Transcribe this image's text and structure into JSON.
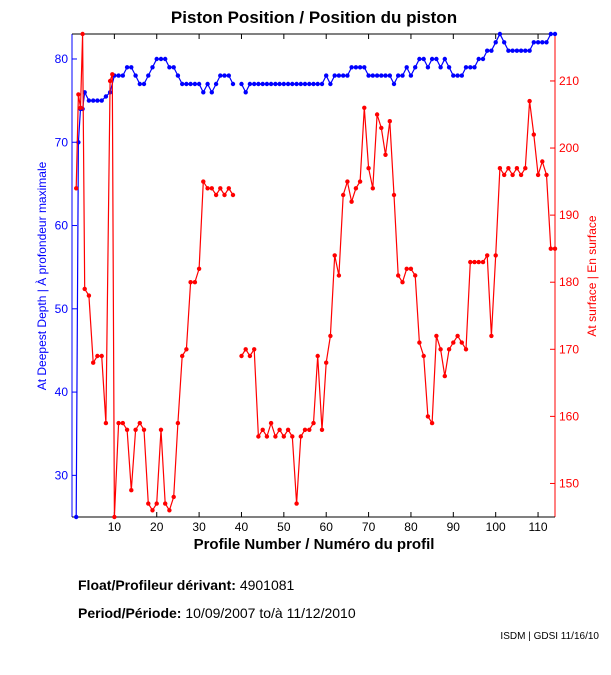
{
  "chart_data": {
    "type": "line",
    "title": "Piston Position / Position du piston",
    "xlabel": "Profile Number / Numéro du profil",
    "ylabel_left": "At Deepest Depth | À profondeur maximale",
    "ylabel_right": "At surface | En surface",
    "xlim": [
      0,
      114
    ],
    "ylim_left": [
      25,
      83
    ],
    "ylim_right": [
      145,
      217
    ],
    "x_ticks": [
      10,
      20,
      30,
      40,
      50,
      60,
      70,
      80,
      90,
      100,
      110
    ],
    "y_ticks_left": [
      30,
      40,
      50,
      60,
      70,
      80
    ],
    "y_ticks_right": [
      150,
      160,
      170,
      180,
      190,
      200,
      210
    ],
    "grid": false,
    "series": [
      {
        "axis": "left",
        "color": "#0000ff",
        "points": [
          [
            1,
            25
          ],
          [
            1.5,
            70
          ],
          [
            2,
            74
          ],
          [
            2.5,
            74
          ],
          [
            3,
            76
          ],
          [
            4,
            75
          ],
          [
            5,
            75
          ],
          [
            6,
            75
          ],
          [
            7,
            75
          ],
          [
            8,
            75.5
          ],
          [
            9,
            76
          ],
          [
            10,
            78
          ],
          [
            11,
            78
          ],
          [
            12,
            78
          ],
          [
            13,
            79
          ],
          [
            14,
            79
          ],
          [
            15,
            78
          ],
          [
            16,
            77
          ],
          [
            17,
            77
          ],
          [
            18,
            78
          ],
          [
            19,
            79
          ],
          [
            20,
            80
          ],
          [
            21,
            80
          ],
          [
            22,
            80
          ],
          [
            23,
            79
          ],
          [
            24,
            79
          ],
          [
            25,
            78
          ],
          [
            26,
            77
          ],
          [
            27,
            77
          ],
          [
            28,
            77
          ],
          [
            29,
            77
          ],
          [
            30,
            77
          ],
          [
            31,
            76
          ],
          [
            32,
            77
          ],
          [
            33,
            76
          ],
          [
            34,
            77
          ],
          [
            35,
            78
          ],
          [
            36,
            78
          ],
          [
            37,
            78
          ],
          [
            38,
            77
          ],
          null,
          [
            40,
            77
          ],
          [
            41,
            76
          ],
          [
            42,
            77
          ],
          [
            43,
            77
          ],
          [
            44,
            77
          ],
          [
            45,
            77
          ],
          [
            46,
            77
          ],
          [
            47,
            77
          ],
          [
            48,
            77
          ],
          [
            49,
            77
          ],
          [
            50,
            77
          ],
          [
            51,
            77
          ],
          [
            52,
            77
          ],
          [
            53,
            77
          ],
          [
            54,
            77
          ],
          [
            55,
            77
          ],
          [
            56,
            77
          ],
          [
            57,
            77
          ],
          [
            58,
            77
          ],
          [
            59,
            77
          ],
          [
            60,
            78
          ],
          [
            61,
            77
          ],
          [
            62,
            78
          ],
          [
            63,
            78
          ],
          [
            64,
            78
          ],
          [
            65,
            78
          ],
          [
            66,
            79
          ],
          [
            67,
            79
          ],
          [
            68,
            79
          ],
          [
            69,
            79
          ],
          [
            70,
            78
          ],
          [
            71,
            78
          ],
          [
            72,
            78
          ],
          [
            73,
            78
          ],
          [
            74,
            78
          ],
          [
            75,
            78
          ],
          [
            76,
            77
          ],
          [
            77,
            78
          ],
          [
            78,
            78
          ],
          [
            79,
            79
          ],
          [
            80,
            78
          ],
          [
            81,
            79
          ],
          [
            82,
            80
          ],
          [
            83,
            80
          ],
          [
            84,
            79
          ],
          [
            85,
            80
          ],
          [
            86,
            80
          ],
          [
            87,
            79
          ],
          [
            88,
            80
          ],
          [
            89,
            79
          ],
          [
            90,
            78
          ],
          [
            91,
            78
          ],
          [
            92,
            78
          ],
          [
            93,
            79
          ],
          [
            94,
            79
          ],
          [
            95,
            79
          ],
          [
            96,
            80
          ],
          [
            97,
            80
          ],
          [
            98,
            81
          ],
          [
            99,
            81
          ],
          [
            100,
            82
          ],
          [
            101,
            83
          ],
          [
            102,
            82
          ],
          [
            103,
            81
          ],
          [
            104,
            81
          ],
          [
            105,
            81
          ],
          [
            106,
            81
          ],
          [
            107,
            81
          ],
          [
            108,
            81
          ],
          [
            109,
            82
          ],
          [
            110,
            82
          ],
          [
            111,
            82
          ],
          [
            112,
            82
          ],
          [
            113,
            83
          ],
          [
            114,
            83
          ]
        ]
      },
      {
        "axis": "right",
        "color": "#ff0000",
        "points": [
          [
            1,
            194
          ],
          [
            1.5,
            208
          ],
          [
            2,
            206
          ],
          [
            2.5,
            217
          ],
          [
            3,
            179
          ],
          [
            4,
            178
          ],
          [
            5,
            168
          ],
          [
            6,
            169
          ],
          [
            7,
            169
          ],
          [
            8,
            159
          ],
          [
            9,
            210
          ],
          [
            9.5,
            211
          ],
          [
            10,
            145
          ],
          [
            11,
            159
          ],
          [
            12,
            159
          ],
          [
            13,
            158
          ],
          [
            14,
            149
          ],
          [
            15,
            158
          ],
          [
            16,
            159
          ],
          [
            17,
            158
          ],
          [
            18,
            147
          ],
          [
            19,
            146
          ],
          [
            20,
            147
          ],
          [
            21,
            158
          ],
          [
            22,
            147
          ],
          [
            23,
            146
          ],
          [
            24,
            148
          ],
          [
            25,
            159
          ],
          [
            26,
            169
          ],
          [
            27,
            170
          ],
          [
            28,
            180
          ],
          [
            29,
            180
          ],
          [
            30,
            182
          ],
          [
            31,
            195
          ],
          [
            32,
            194
          ],
          [
            33,
            194
          ],
          [
            34,
            193
          ],
          [
            35,
            194
          ],
          [
            36,
            193
          ],
          [
            37,
            194
          ],
          [
            38,
            193
          ],
          null,
          [
            40,
            169
          ],
          [
            41,
            170
          ],
          [
            42,
            169
          ],
          [
            43,
            170
          ],
          [
            44,
            157
          ],
          [
            45,
            158
          ],
          [
            46,
            157
          ],
          [
            47,
            159
          ],
          [
            48,
            157
          ],
          [
            49,
            158
          ],
          [
            50,
            157
          ],
          [
            51,
            158
          ],
          [
            52,
            157
          ],
          [
            53,
            147
          ],
          [
            54,
            157
          ],
          [
            55,
            158
          ],
          [
            56,
            158
          ],
          [
            57,
            159
          ],
          [
            58,
            169
          ],
          [
            59,
            158
          ],
          [
            60,
            168
          ],
          [
            61,
            172
          ],
          [
            62,
            184
          ],
          [
            63,
            181
          ],
          [
            64,
            193
          ],
          [
            65,
            195
          ],
          [
            66,
            192
          ],
          [
            67,
            194
          ],
          [
            68,
            195
          ],
          [
            69,
            206
          ],
          [
            70,
            197
          ],
          [
            71,
            194
          ],
          [
            72,
            205
          ],
          [
            73,
            203
          ],
          [
            74,
            199
          ],
          [
            75,
            204
          ],
          [
            76,
            193
          ],
          [
            77,
            181
          ],
          [
            78,
            180
          ],
          [
            79,
            182
          ],
          [
            80,
            182
          ],
          [
            81,
            181
          ],
          [
            82,
            171
          ],
          [
            83,
            169
          ],
          [
            84,
            160
          ],
          [
            85,
            159
          ],
          [
            86,
            172
          ],
          [
            87,
            170
          ],
          [
            88,
            166
          ],
          [
            89,
            170
          ],
          [
            90,
            171
          ],
          [
            91,
            172
          ],
          [
            92,
            171
          ],
          [
            93,
            170
          ],
          [
            94,
            183
          ],
          [
            95,
            183
          ],
          [
            96,
            183
          ],
          [
            97,
            183
          ],
          [
            98,
            184
          ],
          [
            99,
            172
          ],
          [
            100,
            184
          ],
          [
            101,
            197
          ],
          [
            102,
            196
          ],
          [
            103,
            197
          ],
          [
            104,
            196
          ],
          [
            105,
            197
          ],
          [
            106,
            196
          ],
          [
            107,
            197
          ],
          [
            108,
            207
          ],
          [
            109,
            202
          ],
          [
            110,
            196
          ],
          [
            111,
            198
          ],
          [
            112,
            196
          ],
          [
            113,
            185
          ],
          [
            114,
            185
          ]
        ]
      }
    ]
  },
  "info": {
    "float_label": "Float/Profileur dérivant:",
    "float_value": "4901081",
    "period_label": "Period/Période:",
    "period_start": "10/09/2007",
    "period_to": "to/à",
    "period_end": "11/12/2010",
    "credit": "ISDM | GDSI 11/16/10"
  }
}
